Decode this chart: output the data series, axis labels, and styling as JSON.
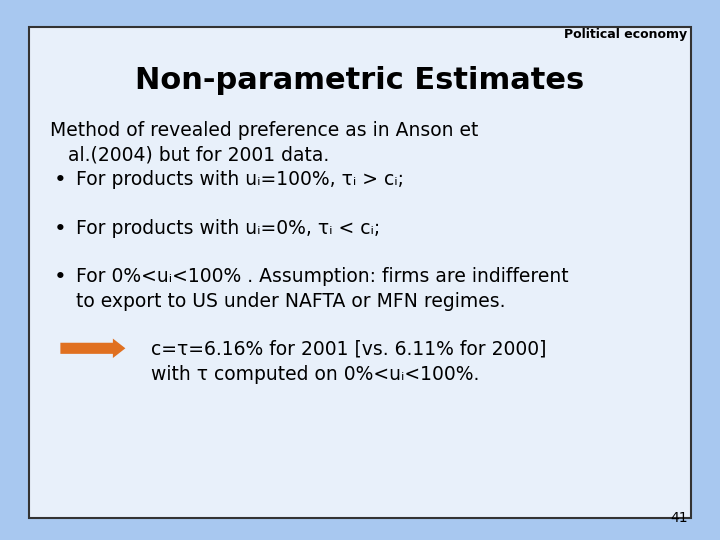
{
  "slide_bg": "#a8c8f0",
  "box_bg": "#e8f0fa",
  "box_border": "#333333",
  "title": "Non-parametric Estimates",
  "title_fontsize": 22,
  "header_label": "Political economy",
  "header_fontsize": 9,
  "page_number": "41",
  "font_color": "#000000",
  "content_fontsize": 13.5,
  "line1": "Method of revealed preference as in Anson et",
  "line2": "   al.(2004) but for 2001 data.",
  "bullet1": "For products with uᵢ=100%, τᵢ > cᵢ;",
  "bullet2": "For products with uᵢ=0%, τᵢ < cᵢ;",
  "bullet3_line1": "For 0%<uᵢ<100% . Assumption: firms are indifferent",
  "bullet3_line2": "to export to US under NAFTA or MFN regimes.",
  "arrow_text1": "c=τ=6.16% for 2001 [vs. 6.11% for 2000]",
  "arrow_text2": "with τ computed on 0%<uᵢ<100%.",
  "arrow_color": "#e07020"
}
